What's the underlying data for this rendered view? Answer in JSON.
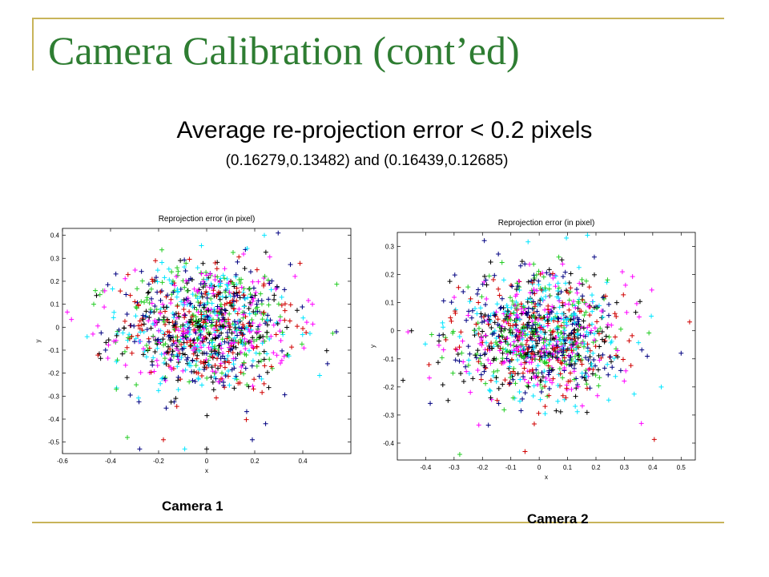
{
  "slide": {
    "title": "Camera Calibration (cont’ed)",
    "subtitle": "Average re-projection error < 0.2 pixels",
    "detail": "(0.16279,0.13482) and (0.16439,0.12685)",
    "accent_color": "#2e7d32",
    "rule_color": "#c8b45a"
  },
  "captions": {
    "camera1": "Camera 1",
    "camera2": "Camera 2"
  },
  "chart_data": [
    {
      "type": "scatter",
      "title": "Reprojection error (in pixel)",
      "xlabel": "x",
      "ylabel": "y",
      "xlim": [
        -0.6,
        0.6
      ],
      "ylim": [
        -0.55,
        0.43
      ],
      "xticks": [
        -0.6,
        -0.4,
        -0.2,
        0,
        0.2,
        0.4
      ],
      "yticks": [
        0.4,
        0.3,
        0.2,
        0.1,
        0,
        -0.1,
        -0.2,
        -0.3,
        -0.4,
        -0.5
      ],
      "marker": "+",
      "grid": false,
      "series_colors": [
        "#000000",
        "#ff00ff",
        "#00e5ff",
        "#22cc22",
        "#d00000",
        "#000080"
      ],
      "center": [
        0.0,
        0.0
      ],
      "spread": [
        0.18,
        0.14
      ],
      "point_count": 1100,
      "extreme_points": [
        [
          0.24,
          0.4
        ],
        [
          -0.33,
          -0.48
        ],
        [
          -0.18,
          -0.49
        ],
        [
          0.19,
          -0.49
        ],
        [
          0.0,
          -0.53
        ],
        [
          0.44,
          0.1
        ],
        [
          0.47,
          -0.21
        ],
        [
          -0.47,
          0.1
        ]
      ]
    },
    {
      "type": "scatter",
      "title": "Reprojection error (in pixel)",
      "xlabel": "x",
      "ylabel": "y",
      "xlim": [
        -0.5,
        0.55
      ],
      "ylim": [
        -0.46,
        0.35
      ],
      "xticks": [
        -0.4,
        -0.3,
        -0.2,
        -0.1,
        0,
        0.1,
        0.2,
        0.3,
        0.4,
        0.5
      ],
      "yticks": [
        0.3,
        0.2,
        0.1,
        0,
        -0.1,
        -0.2,
        -0.3,
        -0.4
      ],
      "marker": "+",
      "grid": false,
      "series_colors": [
        "#000000",
        "#ff00ff",
        "#00e5ff",
        "#22cc22",
        "#d00000",
        "#000080"
      ],
      "center": [
        0.0,
        -0.02
      ],
      "spread": [
        0.15,
        0.11
      ],
      "point_count": 1100,
      "extreme_points": [
        [
          0.17,
          0.34
        ],
        [
          -0.28,
          -0.44
        ],
        [
          -0.05,
          -0.43
        ],
        [
          0.5,
          -0.08
        ],
        [
          -0.45,
          0.0
        ],
        [
          0.36,
          -0.33
        ],
        [
          0.43,
          -0.2
        ]
      ]
    }
  ]
}
